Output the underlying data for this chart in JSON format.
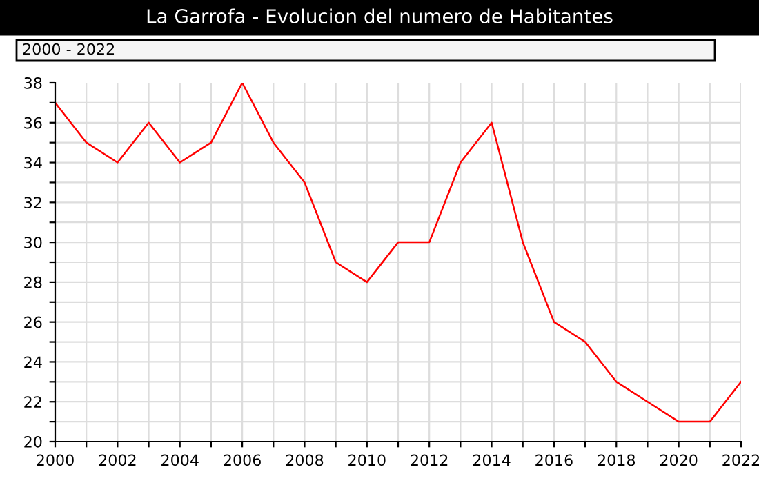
{
  "chart_data": {
    "type": "line",
    "title": "La Garrofa - Evolucion del numero de Habitantes",
    "subtitle": "2000 - 2022",
    "x": [
      2000,
      2001,
      2002,
      2003,
      2004,
      2005,
      2006,
      2007,
      2008,
      2009,
      2010,
      2011,
      2012,
      2013,
      2014,
      2015,
      2016,
      2017,
      2018,
      2019,
      2020,
      2021,
      2022
    ],
    "series": [
      {
        "color": "#ff0000",
        "values": [
          37,
          35,
          34,
          36,
          34,
          35,
          38,
          35,
          33,
          29,
          28,
          30,
          30,
          34,
          36,
          30,
          26,
          25,
          23,
          22,
          21,
          21,
          23
        ]
      }
    ],
    "xlim": [
      2000,
      2022
    ],
    "ylim": [
      20,
      38
    ],
    "xticks": [
      2000,
      {
        "value": 2001,
        "label": null
      },
      2002,
      {
        "value": 2003,
        "label": null
      },
      2004,
      {
        "value": 2005,
        "label": null
      },
      2006,
      {
        "value": 2007,
        "label": null
      },
      2008,
      {
        "value": 2009,
        "label": null
      },
      2010,
      {
        "value": 2011,
        "label": null
      },
      2012,
      {
        "value": 2013,
        "label": null
      },
      2014,
      {
        "value": 2015,
        "label": null
      },
      2016,
      {
        "value": 2017,
        "label": null
      },
      2018,
      {
        "value": 2019,
        "label": null
      },
      2020,
      {
        "value": 2021,
        "label": null
      },
      2022
    ],
    "yticks": [
      20,
      {
        "value": 21,
        "label": null
      },
      22,
      {
        "value": 23,
        "label": null
      },
      24,
      {
        "value": 25,
        "label": null
      },
      26,
      {
        "value": 27,
        "label": null
      },
      28,
      {
        "value": 29,
        "label": null
      },
      30,
      {
        "value": 31,
        "label": null
      },
      32,
      {
        "value": 33,
        "label": null
      },
      34,
      {
        "value": 35,
        "label": null
      },
      36,
      {
        "value": 37,
        "label": null
      },
      38
    ],
    "grid": true,
    "legend": false,
    "marker": "none",
    "line_style": "solid"
  }
}
